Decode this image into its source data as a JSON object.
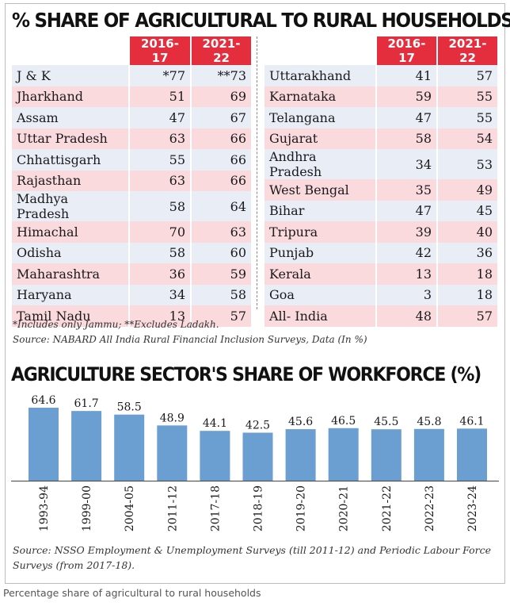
{
  "title": "% SHARE OF AGRICULTURAL TO RURAL HOUSEHOLDS",
  "columns": [
    "2016-17",
    "2021-22"
  ],
  "left_table": [
    {
      "state": "J & K",
      "v1": "*77",
      "v2": "**73"
    },
    {
      "state": "Jharkhand",
      "v1": "51",
      "v2": "69"
    },
    {
      "state": "Assam",
      "v1": "47",
      "v2": "67"
    },
    {
      "state": "Uttar Pradesh",
      "v1": "63",
      "v2": "66"
    },
    {
      "state": "Chhattisgarh",
      "v1": "55",
      "v2": "66"
    },
    {
      "state": "Rajasthan",
      "v1": "63",
      "v2": "66"
    },
    {
      "state": "Madhya Pradesh",
      "v1": "58",
      "v2": "64"
    },
    {
      "state": "Himachal",
      "v1": "70",
      "v2": "63"
    },
    {
      "state": "Odisha",
      "v1": "58",
      "v2": "60"
    },
    {
      "state": "Maharashtra",
      "v1": "36",
      "v2": "59"
    },
    {
      "state": "Haryana",
      "v1": "34",
      "v2": "58"
    },
    {
      "state": "Tamil Nadu",
      "v1": "13",
      "v2": "57"
    }
  ],
  "right_table": [
    {
      "state": "Uttarakhand",
      "v1": "41",
      "v2": "57"
    },
    {
      "state": "Karnataka",
      "v1": "59",
      "v2": "55"
    },
    {
      "state": "Telangana",
      "v1": "47",
      "v2": "55"
    },
    {
      "state": "Gujarat",
      "v1": "58",
      "v2": "54"
    },
    {
      "state": "Andhra Pradesh",
      "v1": "34",
      "v2": "53"
    },
    {
      "state": "West Bengal",
      "v1": "35",
      "v2": "49"
    },
    {
      "state": "Bihar",
      "v1": "47",
      "v2": "45"
    },
    {
      "state": "Tripura",
      "v1": "39",
      "v2": "40"
    },
    {
      "state": "Punjab",
      "v1": "42",
      "v2": "36"
    },
    {
      "state": "Kerala",
      "v1": "13",
      "v2": "18"
    },
    {
      "state": "Goa",
      "v1": "3",
      "v2": "18"
    },
    {
      "state": "All- India",
      "v1": "48",
      "v2": "57"
    }
  ],
  "table_note": "*Includes only Jammu; **Excludes Ladakh.",
  "table_source": "Source: NABARD All India Rural Financial Inclusion Surveys, Data (In %)",
  "chart_data": {
    "type": "bar",
    "title": "AGRICULTURE SECTOR'S SHARE OF WORKFORCE (%)",
    "categories": [
      "1993-94",
      "1999-00",
      "2004-05",
      "2011-12",
      "2017-18",
      "2018-19",
      "2019-20",
      "2020-21",
      "2021-22",
      "2022-23",
      "2023-24"
    ],
    "values": [
      64.6,
      61.7,
      58.5,
      48.9,
      44.1,
      42.5,
      45.6,
      46.5,
      45.5,
      45.8,
      46.1
    ],
    "value_labels": [
      "64.6",
      "61.7",
      "58.5",
      "48.9",
      "44.1",
      "42.5",
      "45.6",
      "46.5",
      "45.5",
      "45.8",
      "46.1"
    ],
    "ylim": [
      0,
      66
    ],
    "bar_color": "#6b9fd1",
    "grid": false,
    "legend": "none"
  },
  "chart_source_line1": "Source: NSSO Employment & Unemployment Surveys (till 2011-12) and Periodic Labour Force",
  "chart_source_line2": "Surveys (from 2017-18).",
  "caption": "Percentage share of agricultural to rural households",
  "colors": {
    "header_red": "#e52e3d",
    "row_blue": "#e8edf6",
    "row_pink": "#fadadd"
  }
}
